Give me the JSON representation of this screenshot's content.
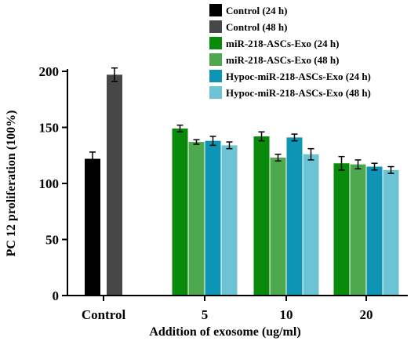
{
  "chart_data": {
    "type": "bar",
    "xlabel": "Addition of exosome (ug/ml)",
    "ylabel": "PC 12 proliferation (100%)",
    "ylim": [
      0,
      200
    ],
    "yticks": [
      0,
      50,
      100,
      150,
      200
    ],
    "grid": false,
    "legend_position": "top-right",
    "groups": [
      {
        "label": "Control",
        "bars": [
          {
            "series": "Control (24 h)",
            "value": 122,
            "error": 6
          },
          {
            "series": "Control (48 h)",
            "value": 197,
            "error": 6
          }
        ]
      },
      {
        "label": "5",
        "bars": [
          {
            "series": "miR-218-ASCs-Exo (24 h)",
            "value": 149,
            "error": 3
          },
          {
            "series": "miR-218-ASCs-Exo (48 h)",
            "value": 137,
            "error": 2
          },
          {
            "series": "Hypoc-miR-218-ASCs-Exo (24 h)",
            "value": 138,
            "error": 4
          },
          {
            "series": "Hypoc-miR-218-ASCs-Exo (48 h)",
            "value": 134,
            "error": 3
          }
        ]
      },
      {
        "label": "10",
        "bars": [
          {
            "series": "miR-218-ASCs-Exo (24 h)",
            "value": 142,
            "error": 4
          },
          {
            "series": "miR-218-ASCs-Exo (48 h)",
            "value": 123,
            "error": 3
          },
          {
            "series": "Hypoc-miR-218-ASCs-Exo (24 h)",
            "value": 141,
            "error": 3
          },
          {
            "series": "Hypoc-miR-218-ASCs-Exo (48 h)",
            "value": 126,
            "error": 5
          }
        ]
      },
      {
        "label": "20",
        "bars": [
          {
            "series": "miR-218-ASCs-Exo (24 h)",
            "value": 118,
            "error": 6
          },
          {
            "series": "miR-218-ASCs-Exo (48 h)",
            "value": 117,
            "error": 4
          },
          {
            "series": "Hypoc-miR-218-ASCs-Exo (24 h)",
            "value": 115,
            "error": 3
          },
          {
            "series": "Hypoc-miR-218-ASCs-Exo (48 h)",
            "value": 112,
            "error": 3
          }
        ]
      }
    ],
    "series": [
      {
        "name": "Control (24 h)",
        "color": "#000000"
      },
      {
        "name": "Control (48 h)",
        "color": "#474747"
      },
      {
        "name": "miR-218-ASCs-Exo (24 h)",
        "color": "#0a8a0a"
      },
      {
        "name": "miR-218-ASCs-Exo (48 h)",
        "color": "#4ea84e"
      },
      {
        "name": "Hypoc-miR-218-ASCs-Exo (24 h)",
        "color": "#0e95b6"
      },
      {
        "name": "Hypoc-miR-218-ASCs-Exo (48 h)",
        "color": "#6cc3d3"
      }
    ]
  }
}
